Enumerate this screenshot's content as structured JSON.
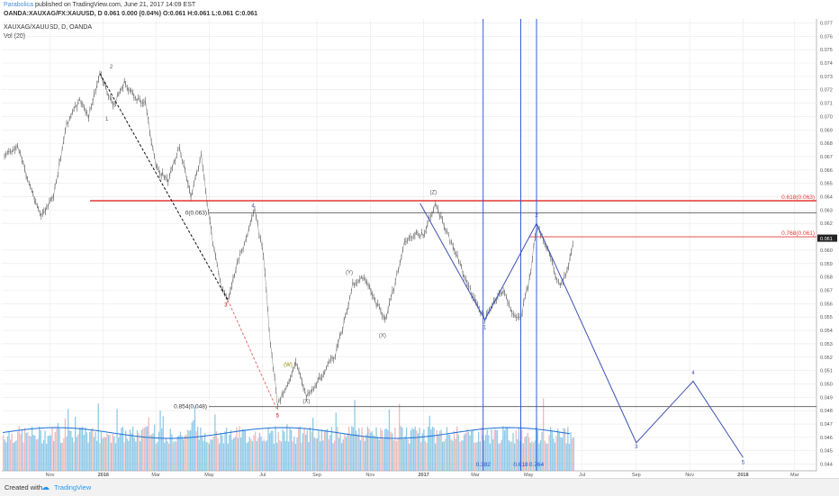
{
  "header": {
    "author": "Parabolica",
    "published": "published on TradingView.com, June 21, 2017 14:09 EST",
    "ohlc": "OANDA:XAUXAG/FX:XAUUSD, D  0.061  0.000 (0.04%)  O:0.061  H:0.061  L:0.061  C:0.061",
    "symbol": "XAUXAG/XAUUSD, D, OANDA",
    "volume_label": "Vol (20)"
  },
  "footer": {
    "created_with": "Created with",
    "brand": "TradingView"
  },
  "colors": {
    "price": "#555555",
    "red_line": "#e53935",
    "blue_wave": "#3f51b5",
    "fib_blue": "#1e4fd8",
    "volume": "#6bb8e0",
    "grid": "#e9e9e9"
  },
  "chart_data": {
    "type": "line",
    "y_axis": {
      "range": [
        0.0435,
        0.0773
      ],
      "ticks": [
        "0.044",
        "0.045",
        "0.046",
        "0.047",
        "0.048",
        "0.049",
        "0.050",
        "0.051",
        "0.052",
        "0.053",
        "0.054",
        "0.055",
        "0.056",
        "0.057",
        "0.058",
        "0.059",
        "0.060",
        "0.062",
        "0.063",
        "0.064",
        "0.065",
        "0.066",
        "0.067",
        "0.068",
        "0.069",
        "0.070",
        "0.071",
        "0.072",
        "0.073",
        "0.074",
        "0.075",
        "0.076",
        "0.077"
      ],
      "last_price_label": "0.061",
      "last_price": 0.0609
    },
    "x_axis": {
      "ticks": [
        "Nov",
        "2016",
        "Mar",
        "May",
        "Jul",
        "Sep",
        "Nov",
        "2017",
        "Mar",
        "May",
        "Jul",
        "Sep",
        "Nov",
        "2018",
        "Mar"
      ]
    },
    "price_path": [
      [
        "2015-09-10",
        0.067
      ],
      [
        "2015-09-25",
        0.0678
      ],
      [
        "2015-10-08",
        0.065
      ],
      [
        "2015-10-22",
        0.0625
      ],
      [
        "2015-11-05",
        0.064
      ],
      [
        "2015-11-20",
        0.0695
      ],
      [
        "2015-12-05",
        0.0712
      ],
      [
        "2015-12-15",
        0.07
      ],
      [
        "2015-12-28",
        0.0732
      ],
      [
        "2016-01-12",
        0.0708
      ],
      [
        "2016-01-25",
        0.0725
      ],
      [
        "2016-02-05",
        0.0715
      ],
      [
        "2016-02-18",
        0.071
      ],
      [
        "2016-03-01",
        0.0662
      ],
      [
        "2016-03-15",
        0.0652
      ],
      [
        "2016-03-28",
        0.0678
      ],
      [
        "2016-04-10",
        0.064
      ],
      [
        "2016-04-22",
        0.067
      ],
      [
        "2016-05-05",
        0.0605
      ],
      [
        "2016-05-15",
        0.0572
      ],
      [
        "2016-05-22",
        0.0563
      ],
      [
        "2016-06-02",
        0.059
      ],
      [
        "2016-06-12",
        0.0608
      ],
      [
        "2016-06-22",
        0.063
      ],
      [
        "2016-07-02",
        0.0595
      ],
      [
        "2016-07-10",
        0.053
      ],
      [
        "2016-07-18",
        0.0485
      ],
      [
        "2016-07-28",
        0.0498
      ],
      [
        "2016-08-08",
        0.0515
      ],
      [
        "2016-08-20",
        0.0492
      ],
      [
        "2016-08-30",
        0.0498
      ],
      [
        "2016-09-10",
        0.051
      ],
      [
        "2016-09-22",
        0.0522
      ],
      [
        "2016-10-02",
        0.0545
      ],
      [
        "2016-10-12",
        0.0575
      ],
      [
        "2016-10-25",
        0.058
      ],
      [
        "2016-11-08",
        0.056
      ],
      [
        "2016-11-18",
        0.0548
      ],
      [
        "2016-11-28",
        0.0572
      ],
      [
        "2016-12-10",
        0.0605
      ],
      [
        "2016-12-22",
        0.0612
      ],
      [
        "2017-01-02",
        0.0612
      ],
      [
        "2017-01-14",
        0.0635
      ],
      [
        "2017-01-26",
        0.0615
      ],
      [
        "2017-02-07",
        0.0598
      ],
      [
        "2017-02-18",
        0.0578
      ],
      [
        "2017-03-02",
        0.056
      ],
      [
        "2017-03-12",
        0.0548
      ],
      [
        "2017-03-22",
        0.0562
      ],
      [
        "2017-04-02",
        0.057
      ],
      [
        "2017-04-12",
        0.0552
      ],
      [
        "2017-04-22",
        0.055
      ],
      [
        "2017-05-02",
        0.0578
      ],
      [
        "2017-05-10",
        0.0618
      ],
      [
        "2017-05-18",
        0.0608
      ],
      [
        "2017-05-28",
        0.059
      ],
      [
        "2017-06-06",
        0.0572
      ],
      [
        "2017-06-14",
        0.0585
      ],
      [
        "2017-06-22",
        0.0607
      ]
    ],
    "horizontal_levels": [
      {
        "name": "0.618(0.063)",
        "value": 0.0637,
        "color": "#e53935",
        "label": "0.618(0.063)"
      },
      {
        "name": "0(0.063)",
        "value": 0.0628,
        "color": "#555555",
        "label": "0(0.063)"
      },
      {
        "name": "0.768(0.061)",
        "value": 0.061,
        "color": "#e53935",
        "label": "0.768(0.061)"
      },
      {
        "name": "0.854(0.048)",
        "value": 0.0483,
        "color": "#555555",
        "label": "0.854(0.048)"
      }
    ],
    "vertical_lines": [
      "0.382",
      "0.618",
      "0.764"
    ],
    "wave_labels": [
      "1",
      "2",
      "3",
      "4",
      "5",
      "(W)",
      "(X)",
      "(Y)",
      "(X)",
      "(Z)",
      "1",
      "2",
      "3",
      "4",
      "5"
    ],
    "volume_series": "Vol (20)"
  }
}
